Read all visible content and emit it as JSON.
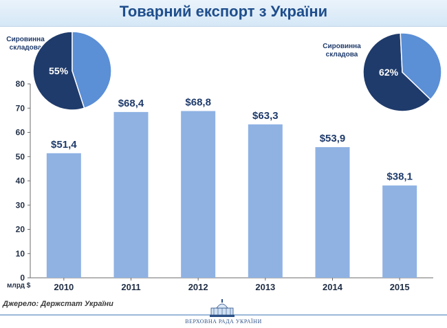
{
  "title": "Товарний експорт з України",
  "unit_label": "млрд $",
  "source": "Джерело: Держстат України",
  "footer_caption": "ВЕРХОВНА РАДА УКРАЇНИ",
  "colors": {
    "bar": "#8fb2e3",
    "pie_dark": "#1f3b6b",
    "pie_light": "#5b8fd6",
    "title": "#1f4e8c"
  },
  "chart_data": [
    {
      "type": "bar",
      "categories": [
        "2010",
        "2011",
        "2012",
        "2013",
        "2014",
        "2015"
      ],
      "values": [
        51.4,
        68.4,
        68.8,
        63.3,
        53.9,
        38.1
      ],
      "value_labels": [
        "$51,4",
        "$68,4",
        "$68,8",
        "$63,3",
        "$53,9",
        "$38,1"
      ],
      "ylim": [
        0,
        80
      ],
      "yticks": [
        0,
        10,
        20,
        30,
        40,
        50,
        60,
        70,
        80
      ],
      "ylabel": "млрд $",
      "grid": false
    },
    {
      "type": "pie",
      "year": "2010",
      "label": "Сировинна складова",
      "values": [
        55,
        45
      ],
      "value_label": "55%",
      "placement": "top-left"
    },
    {
      "type": "pie",
      "year": "2015",
      "label": "Сировинна складова",
      "values": [
        62,
        38
      ],
      "value_label": "62%",
      "placement": "top-right"
    }
  ]
}
